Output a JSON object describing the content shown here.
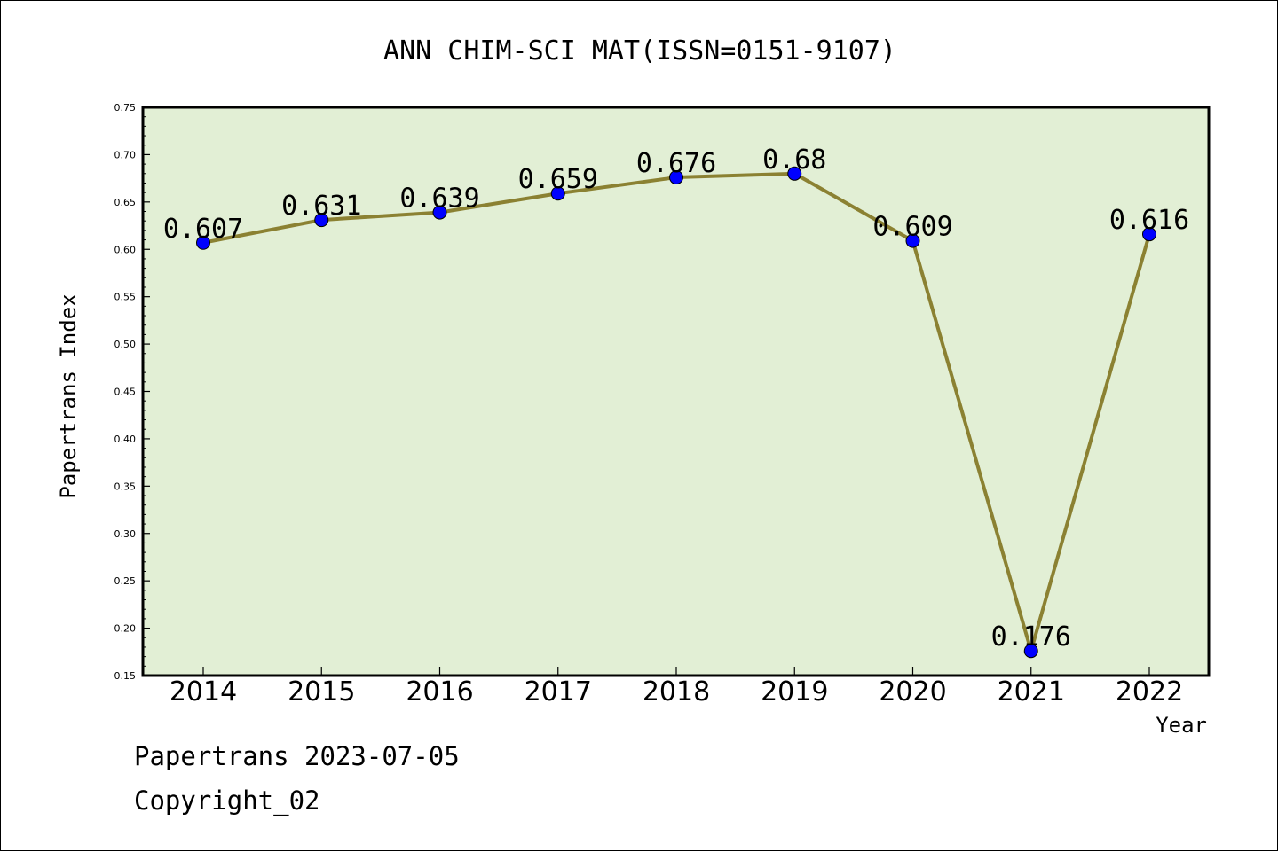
{
  "chart_data": {
    "type": "line",
    "title": "ANN CHIM-SCI MAT(ISSN=0151-9107)",
    "xlabel": "Year",
    "ylabel": "Papertrans Index",
    "categories": [
      "2014",
      "2015",
      "2016",
      "2017",
      "2018",
      "2019",
      "2020",
      "2021",
      "2022"
    ],
    "values": [
      0.607,
      0.631,
      0.639,
      0.659,
      0.676,
      0.68,
      0.609,
      0.176,
      0.616
    ],
    "value_labels": [
      "0.607",
      "0.631",
      "0.639",
      "0.659",
      "0.676",
      "0.68",
      "0.609",
      "0.176",
      "0.616"
    ],
    "ylim": [
      0.15,
      0.75
    ],
    "yticks": [
      "0.15",
      "0.20",
      "0.25",
      "0.30",
      "0.35",
      "0.40",
      "0.45",
      "0.50",
      "0.55",
      "0.60",
      "0.65",
      "0.70",
      "0.75"
    ],
    "grid": false,
    "colors": {
      "plot_background": "#e2efd5",
      "line": "#8b8132",
      "marker": "#0000ff"
    }
  },
  "footer": {
    "source": "Papertrans 2023-07-05",
    "copyright": "Copyright_02"
  }
}
